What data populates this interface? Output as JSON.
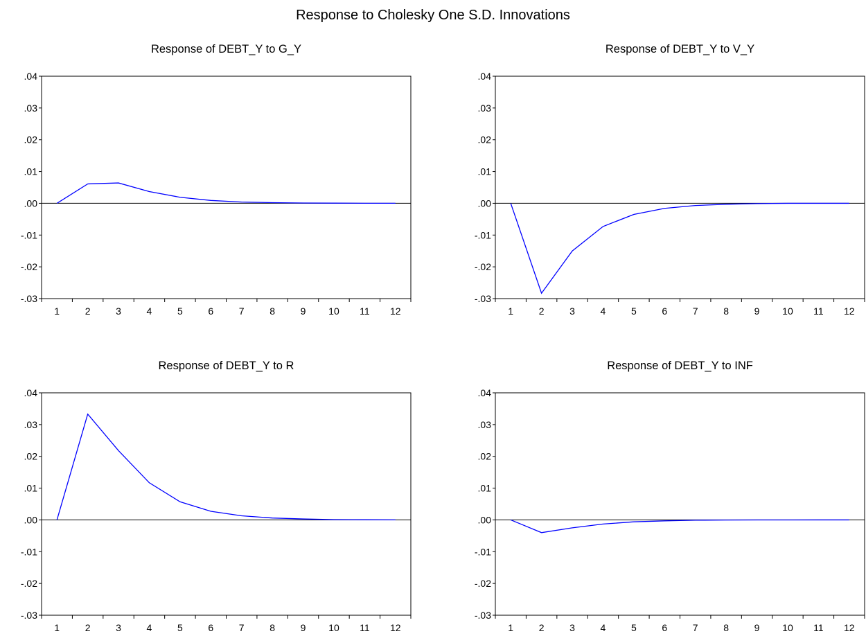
{
  "figure_title": "Response to Cholesky One S.D. Innovations",
  "line_color": "#0000ff",
  "chart_data": [
    {
      "type": "line",
      "title": "Response of DEBT_Y to G_Y",
      "x": [
        1,
        2,
        3,
        4,
        5,
        6,
        7,
        8,
        9,
        10,
        11,
        12
      ],
      "series": [
        {
          "values": [
            0.0,
            0.0061,
            0.0064,
            0.0037,
            0.0019,
            0.0009,
            0.0004,
            0.0002,
            0.0001,
            5e-05,
            2e-05,
            1e-05
          ]
        }
      ],
      "ylim": [
        -0.03,
        0.04
      ],
      "yticks": [
        ".04",
        ".03",
        ".02",
        ".01",
        ".00",
        "-.01",
        "-.02",
        "-.03"
      ],
      "zero_line": true
    },
    {
      "type": "line",
      "title": "Response of DEBT_Y to V_Y",
      "x": [
        1,
        2,
        3,
        4,
        5,
        6,
        7,
        8,
        9,
        10,
        11,
        12
      ],
      "series": [
        {
          "values": [
            0.0,
            -0.0283,
            -0.015,
            -0.0073,
            -0.0035,
            -0.0016,
            -0.0007,
            -0.0003,
            -0.0001,
            0.0,
            0.0,
            0.0
          ]
        }
      ],
      "ylim": [
        -0.03,
        0.04
      ],
      "yticks": [
        ".04",
        ".03",
        ".02",
        ".01",
        ".00",
        "-.01",
        "-.02",
        "-.03"
      ],
      "zero_line": true
    },
    {
      "type": "line",
      "title": "Response of DEBT_Y to R",
      "x": [
        1,
        2,
        3,
        4,
        5,
        6,
        7,
        8,
        9,
        10,
        11,
        12
      ],
      "series": [
        {
          "values": [
            0.0,
            0.0333,
            0.0218,
            0.0117,
            0.0057,
            0.0027,
            0.0013,
            0.0006,
            0.0003,
            0.0001,
            5e-05,
            2e-05
          ]
        }
      ],
      "ylim": [
        -0.03,
        0.04
      ],
      "yticks": [
        ".04",
        ".03",
        ".02",
        ".01",
        ".00",
        "-.01",
        "-.02",
        "-.03"
      ],
      "zero_line": true
    },
    {
      "type": "line",
      "title": "Response of DEBT_Y to INF",
      "x": [
        1,
        2,
        3,
        4,
        5,
        6,
        7,
        8,
        9,
        10,
        11,
        12
      ],
      "series": [
        {
          "values": [
            0.0,
            -0.004,
            -0.0025,
            -0.0013,
            -0.0006,
            -0.0003,
            -0.0001,
            -5e-05,
            -2e-05,
            -1e-05,
            0.0,
            0.0
          ]
        }
      ],
      "ylim": [
        -0.03,
        0.04
      ],
      "yticks": [
        ".04",
        ".03",
        ".02",
        ".01",
        ".00",
        "-.01",
        "-.02",
        "-.03"
      ],
      "zero_line": true
    }
  ]
}
